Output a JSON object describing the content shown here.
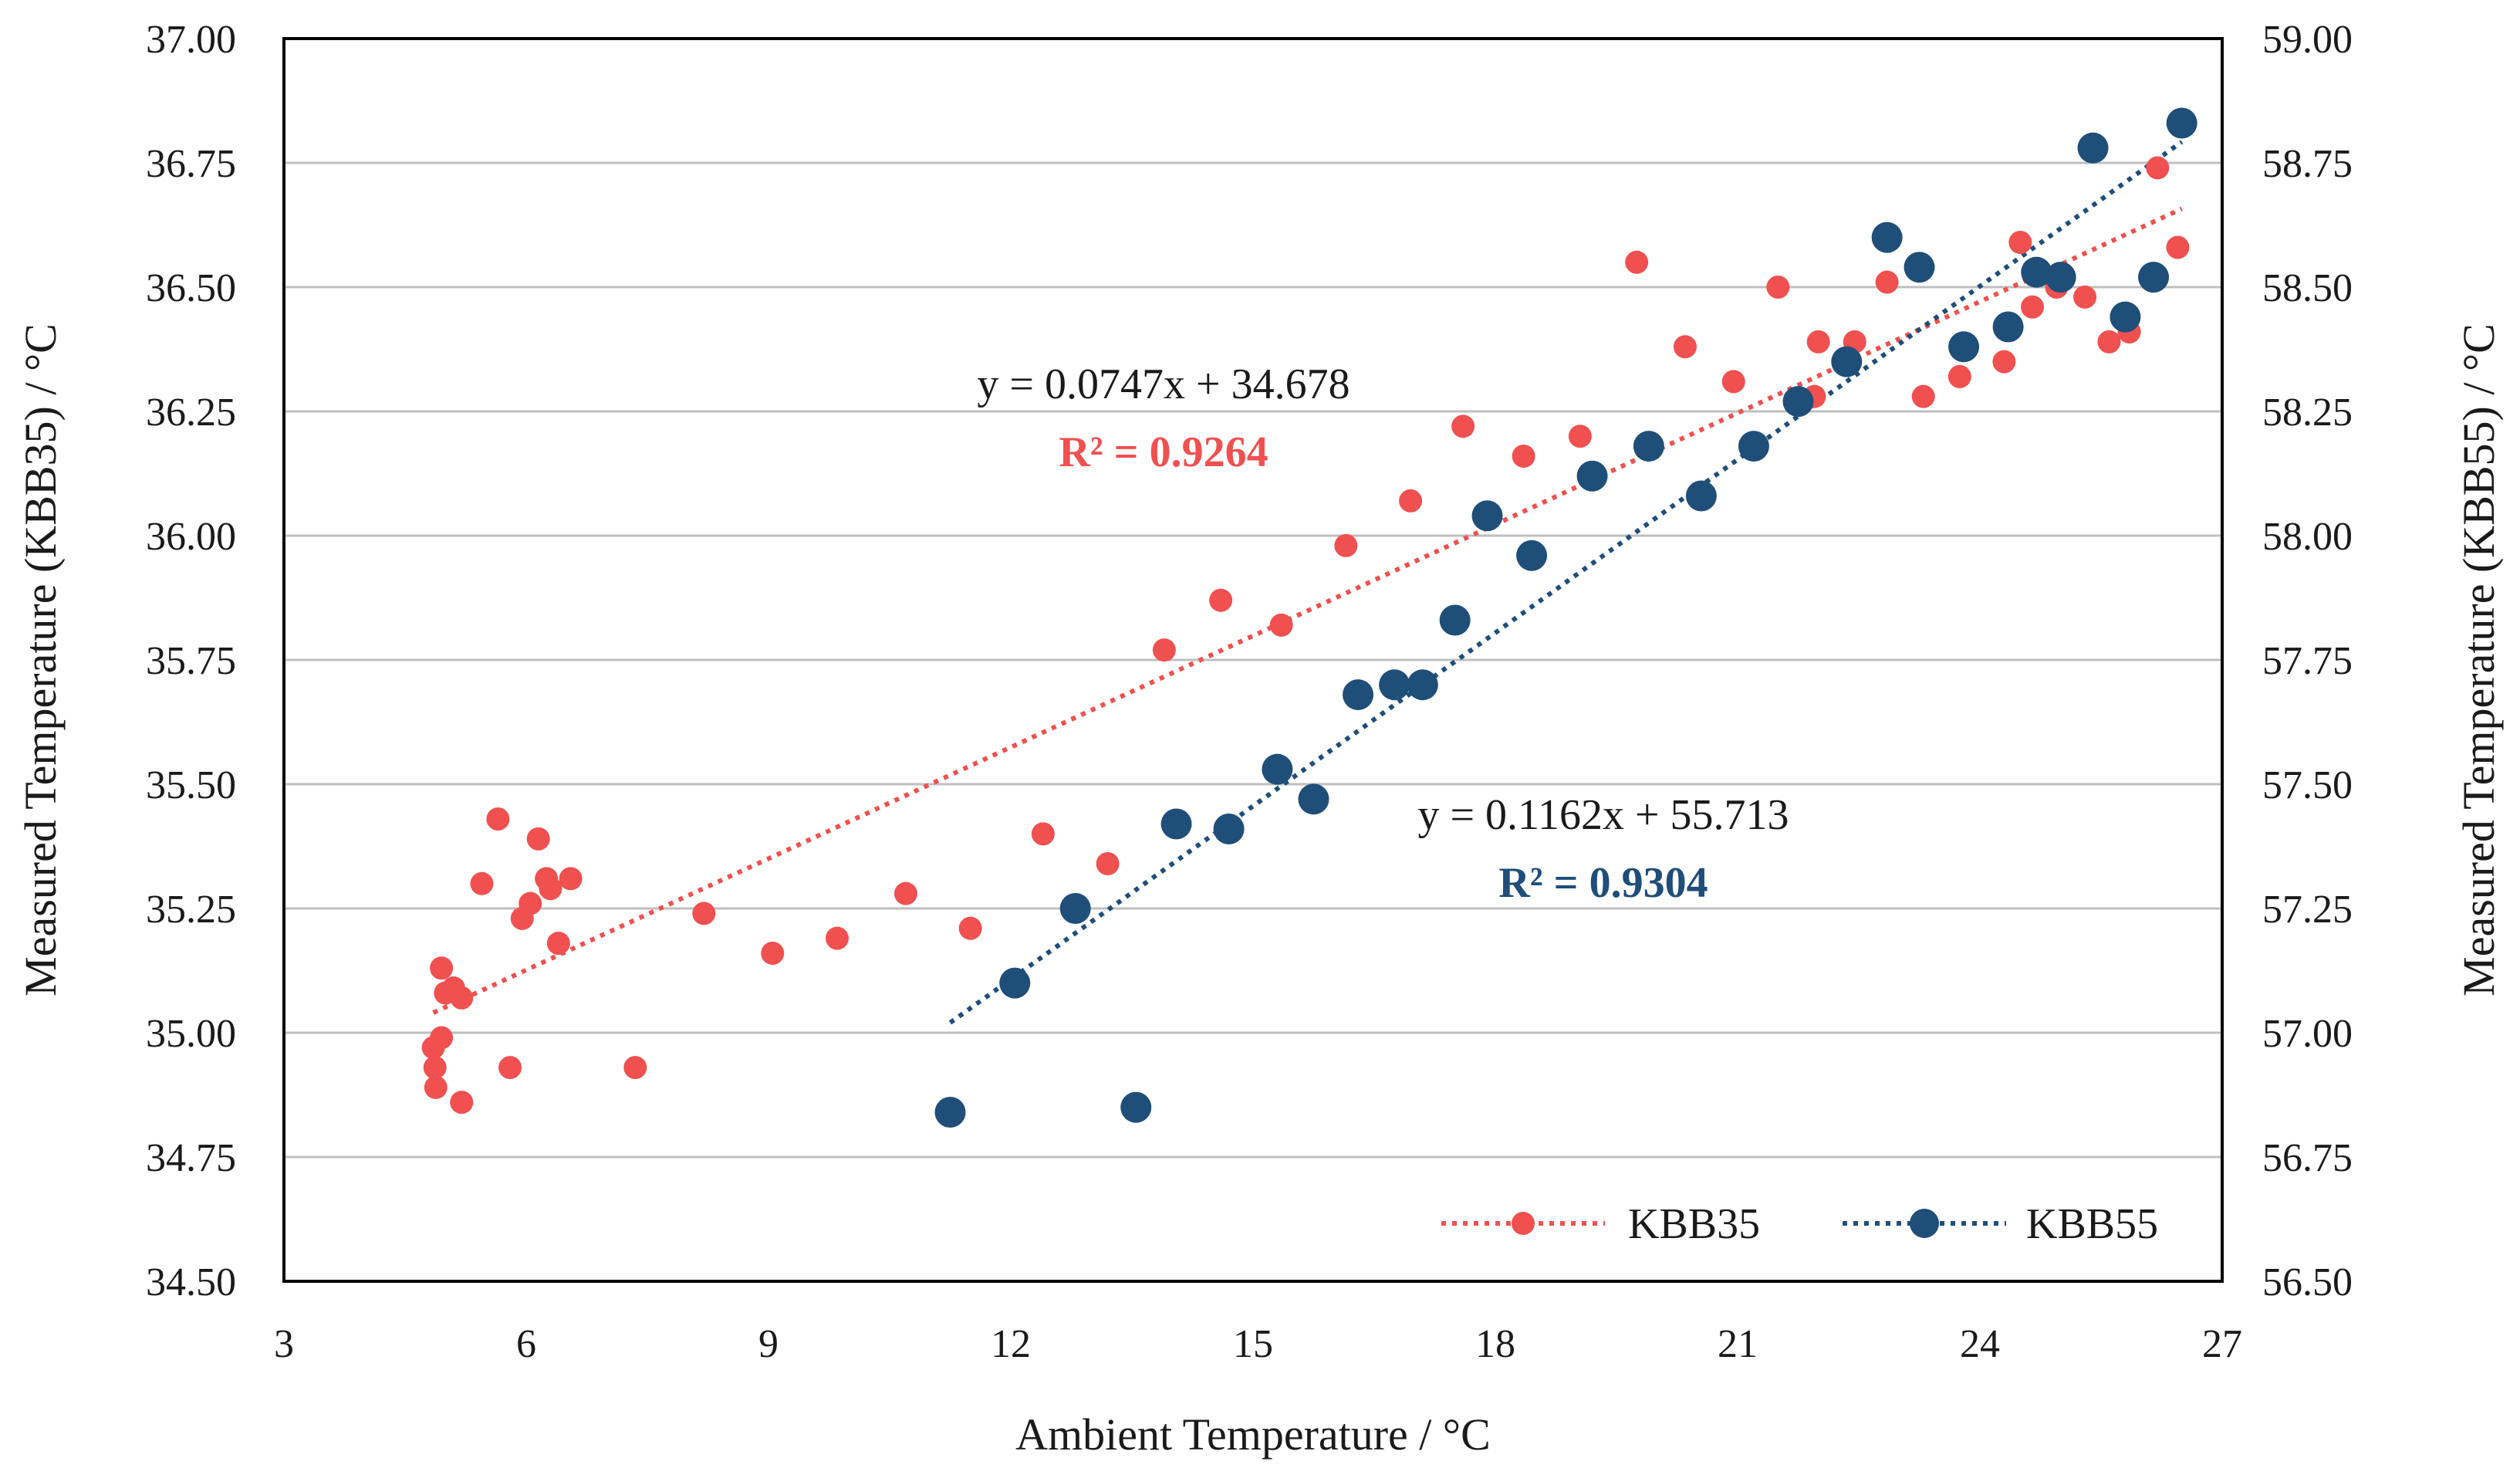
{
  "chart_data": {
    "type": "scatter",
    "xlabel": "Ambient Temperature / °C",
    "ylabel_left": "Measured Temperature (KBB35) / °C",
    "ylabel_right": "Measured Temperature (KBB55) / °C",
    "xlim": [
      3,
      27
    ],
    "ylim_left": [
      34.5,
      37.0
    ],
    "ylim_right": [
      56.5,
      59.0
    ],
    "x_ticks": [
      "3",
      "6",
      "9",
      "12",
      "15",
      "18",
      "21",
      "24",
      "27"
    ],
    "y_left_ticks": [
      "34.50",
      "34.75",
      "35.00",
      "35.25",
      "35.50",
      "35.75",
      "36.00",
      "36.25",
      "36.50",
      "36.75",
      "37.00"
    ],
    "y_right_ticks": [
      "56.50",
      "56.75",
      "57.00",
      "57.25",
      "57.50",
      "57.75",
      "58.00",
      "58.25",
      "58.50",
      "58.75",
      "59.00"
    ],
    "grid": "horizontal",
    "legend_position": "bottom-right",
    "series": [
      {
        "name": "KBB35",
        "axis": "left",
        "color": "#f0504f",
        "trend_equation": "y = 0.0747x + 34.678",
        "r_squared": "R² = 0.9264",
        "trend": {
          "slope": 0.0747,
          "intercept": 34.678,
          "x_range": [
            4.85,
            26.5
          ]
        },
        "points": [
          [
            4.85,
            34.97
          ],
          [
            4.87,
            34.93
          ],
          [
            4.88,
            34.89
          ],
          [
            4.95,
            35.13
          ],
          [
            4.95,
            34.99
          ],
          [
            5.0,
            35.08
          ],
          [
            5.1,
            35.09
          ],
          [
            5.2,
            35.07
          ],
          [
            5.2,
            34.86
          ],
          [
            5.45,
            35.3
          ],
          [
            5.65,
            35.43
          ],
          [
            5.8,
            34.93
          ],
          [
            5.95,
            35.23
          ],
          [
            6.05,
            35.26
          ],
          [
            6.15,
            35.39
          ],
          [
            6.25,
            35.31
          ],
          [
            6.3,
            35.29
          ],
          [
            6.4,
            35.18
          ],
          [
            6.55,
            35.31
          ],
          [
            7.35,
            34.93
          ],
          [
            8.2,
            35.24
          ],
          [
            9.05,
            35.16
          ],
          [
            9.85,
            35.19
          ],
          [
            10.7,
            35.28
          ],
          [
            11.5,
            35.21
          ],
          [
            12.4,
            35.4
          ],
          [
            13.2,
            35.34
          ],
          [
            13.9,
            35.77
          ],
          [
            14.6,
            35.87
          ],
          [
            15.35,
            35.82
          ],
          [
            16.15,
            35.98
          ],
          [
            16.95,
            36.07
          ],
          [
            17.6,
            36.22
          ],
          [
            18.35,
            36.16
          ],
          [
            19.05,
            36.2
          ],
          [
            19.75,
            36.55
          ],
          [
            20.35,
            36.38
          ],
          [
            20.95,
            36.31
          ],
          [
            21.5,
            36.5
          ],
          [
            21.95,
            36.28
          ],
          [
            22.0,
            36.39
          ],
          [
            22.45,
            36.39
          ],
          [
            22.85,
            36.51
          ],
          [
            23.3,
            36.28
          ],
          [
            23.75,
            36.32
          ],
          [
            24.3,
            36.35
          ],
          [
            24.5,
            36.59
          ],
          [
            24.65,
            36.46
          ],
          [
            24.95,
            36.5
          ],
          [
            25.3,
            36.48
          ],
          [
            25.6,
            36.39
          ],
          [
            25.85,
            36.41
          ],
          [
            26.2,
            36.74
          ],
          [
            26.45,
            36.58
          ]
        ]
      },
      {
        "name": "KBB55",
        "axis": "right",
        "color": "#1f4e79",
        "trend_equation": "y = 0.1162x + 55.713",
        "r_squared": "R² = 0.9304",
        "trend": {
          "slope": 0.1162,
          "intercept": 55.713,
          "x_range": [
            11.25,
            26.5
          ]
        },
        "points": [
          [
            11.25,
            56.84
          ],
          [
            12.05,
            57.1
          ],
          [
            12.8,
            57.25
          ],
          [
            13.55,
            56.85
          ],
          [
            14.05,
            57.42
          ],
          [
            14.7,
            57.41
          ],
          [
            15.3,
            57.53
          ],
          [
            15.75,
            57.47
          ],
          [
            16.3,
            57.68
          ],
          [
            16.75,
            57.7
          ],
          [
            17.1,
            57.7
          ],
          [
            17.5,
            57.83
          ],
          [
            17.9,
            58.04
          ],
          [
            18.45,
            57.96
          ],
          [
            19.2,
            58.12
          ],
          [
            19.9,
            58.18
          ],
          [
            20.55,
            58.08
          ],
          [
            21.2,
            58.18
          ],
          [
            21.75,
            58.27
          ],
          [
            22.35,
            58.35
          ],
          [
            22.85,
            58.6
          ],
          [
            23.25,
            58.54
          ],
          [
            23.8,
            58.38
          ],
          [
            24.35,
            58.42
          ],
          [
            24.7,
            58.53
          ],
          [
            25.0,
            58.52
          ],
          [
            25.4,
            58.78
          ],
          [
            25.8,
            58.44
          ],
          [
            26.15,
            58.52
          ],
          [
            26.5,
            58.83
          ]
        ]
      }
    ]
  }
}
